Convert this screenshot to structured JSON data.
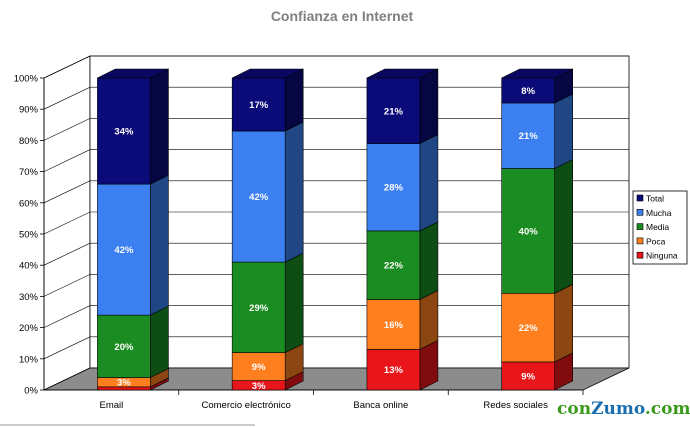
{
  "chart_data": {
    "type": "bar",
    "stacked": true,
    "three_d": true,
    "title": "Confianza en Internet",
    "categories": [
      "Email",
      "Comercio electrónico",
      "Banca online",
      "Redes sociales"
    ],
    "series": [
      {
        "name": "Ninguna",
        "color": "#e8161b",
        "values": [
          1,
          3,
          13,
          9
        ],
        "labels": [
          "",
          "3%",
          "13%",
          "9%"
        ]
      },
      {
        "name": "Poca",
        "color": "#ff7f1f",
        "values": [
          3,
          9,
          16,
          22
        ],
        "labels": [
          "3%",
          "9%",
          "16%",
          "22%"
        ]
      },
      {
        "name": "Media",
        "color": "#1a8c22",
        "values": [
          20,
          29,
          22,
          40
        ],
        "labels": [
          "20%",
          "29%",
          "22%",
          "40%"
        ]
      },
      {
        "name": "Mucha",
        "color": "#3b7ff0",
        "values": [
          42,
          42,
          28,
          21
        ],
        "labels": [
          "42%",
          "42%",
          "28%",
          "21%"
        ]
      },
      {
        "name": "Total",
        "color": "#0a0a78",
        "values": [
          34,
          17,
          21,
          8
        ],
        "labels": [
          "34%",
          "17%",
          "21%",
          "8%"
        ]
      }
    ],
    "yticks": [
      "0%",
      "10%",
      "20%",
      "30%",
      "40%",
      "50%",
      "60%",
      "70%",
      "80%",
      "90%",
      "100%"
    ],
    "ylim": [
      0,
      100
    ],
    "grid": true,
    "legend_position": "right"
  },
  "legend_order": [
    "Total",
    "Mucha",
    "Media",
    "Poca",
    "Ninguna"
  ],
  "watermark": {
    "part1": "con",
    "part2": "Zumo",
    "part3": ".com"
  }
}
